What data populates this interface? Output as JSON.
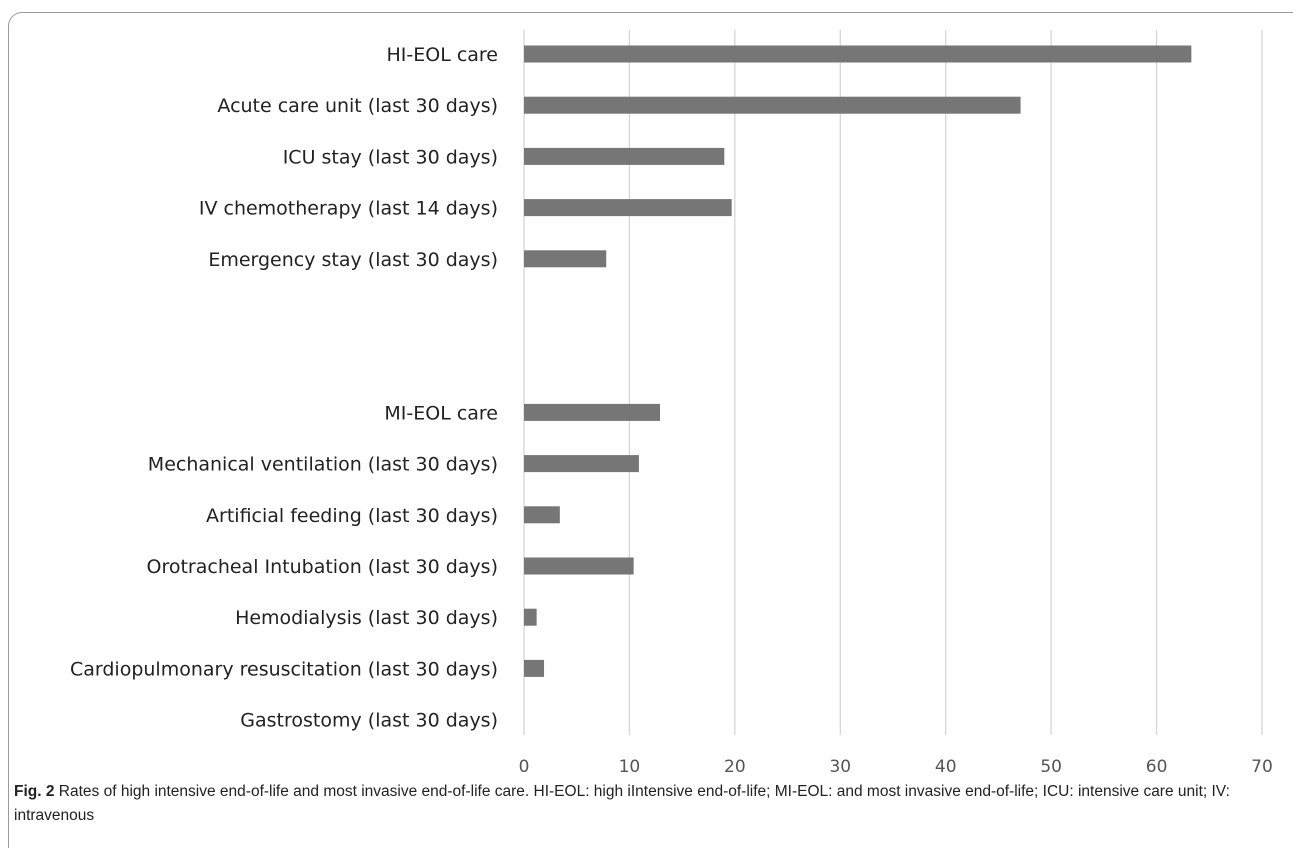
{
  "chart_data": {
    "type": "bar",
    "orientation": "horizontal",
    "categories": [
      "HI-EOL care",
      "Acute care unit (last 30 days)",
      "ICU stay (last 30 days)",
      "IV chemotherapy (last 14 days)",
      "Emergency stay (last 30 days)",
      "",
      "",
      "MI-EOL care",
      "Mechanical ventilation (last 30 days)",
      "Artificial feeding (last 30 days)",
      "Orotracheal Intubation (last 30 days)",
      "Hemodialysis (last 30 days)",
      "Cardiopulmonary resuscitation (last 30 days)",
      "Gastrostomy (last 30 days)"
    ],
    "values": [
      63.3,
      47.1,
      19.0,
      19.7,
      7.8,
      null,
      null,
      12.9,
      10.9,
      3.4,
      10.4,
      1.2,
      1.9,
      0
    ],
    "xlim": [
      0,
      70
    ],
    "xticks": [
      0,
      10,
      20,
      30,
      40,
      50,
      60,
      70
    ],
    "grid": true,
    "bar_color": "#767676"
  },
  "caption": {
    "figure_label": "Fig. 2",
    "text": "Rates of high intensive end-of-life and most invasive end-of-life care. HI-EOL: high iIntensive end-of-life; MI-EOL: and most invasive end-of-life; ICU: intensive care unit; IV: intravenous"
  }
}
